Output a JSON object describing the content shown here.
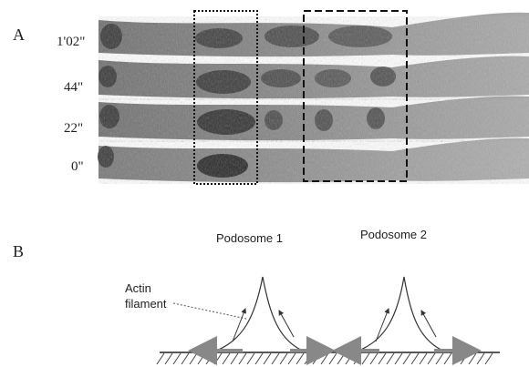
{
  "figure": {
    "panel_a": {
      "letter": "A",
      "time_labels": [
        "1'02\"",
        "44\"",
        "22\"",
        "0\""
      ]
    },
    "panel_b": {
      "letter": "B",
      "podosome_labels": [
        "Podosome 1",
        "Podosome 2"
      ],
      "actin_label_line1": "Actin",
      "actin_label_line2": "filament"
    }
  }
}
